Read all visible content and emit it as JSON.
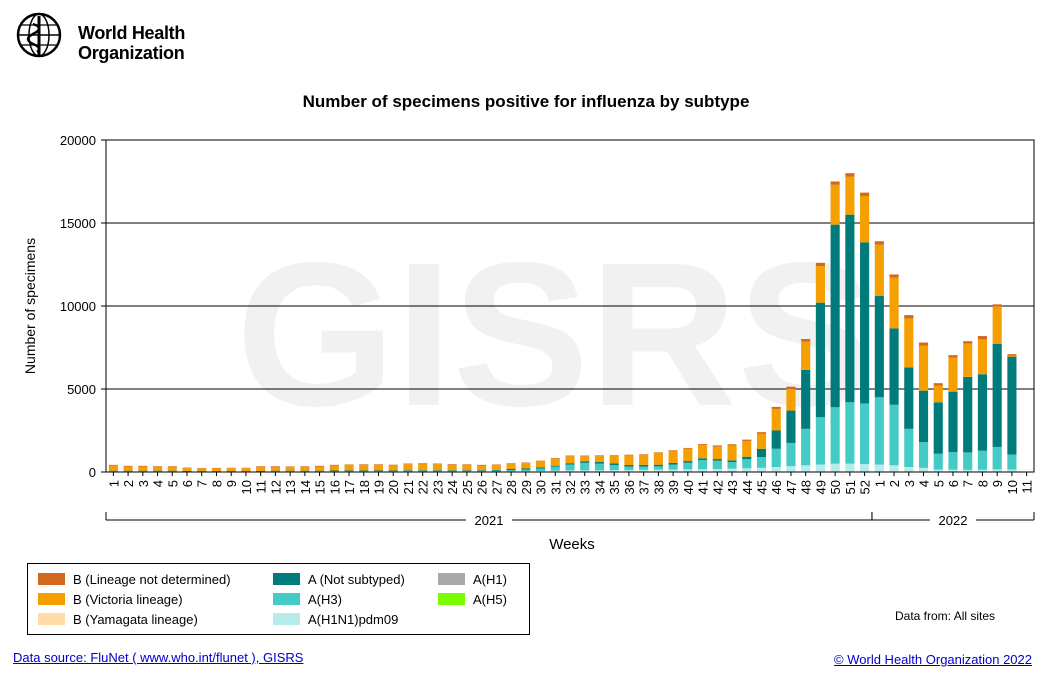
{
  "header": {
    "org_line1": "World Health",
    "org_line2": "Organization"
  },
  "watermark": "GISRS",
  "note": "Data from: All sites",
  "footer": {
    "source": "Data source: FluNet ( www.who.int/flunet ), GISRS",
    "copyright": "© World Health Organization 2022"
  },
  "colors": {
    "b_lineage_nd": "#d2691e",
    "b_victoria": "#f5a000",
    "b_yamagata": "#ffdba6",
    "a_not_subtyped": "#007b7b",
    "a_h3": "#45cbc5",
    "a_h1n1pdm09": "#b6ecec",
    "a_h1": "#a9a9a9",
    "a_h5": "#7cfc00"
  },
  "legend": [
    {
      "name": "B (Lineage not determined)",
      "color_key": "b_lineage_nd"
    },
    {
      "name": "B (Victoria lineage)",
      "color_key": "b_victoria"
    },
    {
      "name": "B (Yamagata lineage)",
      "color_key": "b_yamagata"
    },
    {
      "name": "A (Not subtyped)",
      "color_key": "a_not_subtyped"
    },
    {
      "name": "A(H3)",
      "color_key": "a_h3"
    },
    {
      "name": "A(H1N1)pdm09",
      "color_key": "a_h1n1pdm09"
    },
    {
      "name": "A(H1)",
      "color_key": "a_h1"
    },
    {
      "name": "A(H5)",
      "color_key": "a_h5"
    }
  ],
  "chart_data": {
    "type": "bar",
    "stacked": true,
    "title": "Number of specimens positive for influenza by subtype",
    "xlabel": "Weeks",
    "ylabel": "Number of specimens",
    "ylim": [
      0,
      20000
    ],
    "yticks": [
      0,
      5000,
      10000,
      15000,
      20000
    ],
    "grid": "horizontal",
    "legend_position": "bottom-left",
    "year_groups": [
      {
        "label": "2021",
        "first_week": 1,
        "last_week": 52
      },
      {
        "label": "2022",
        "first_week": 1,
        "last_week": 11
      }
    ],
    "categories": [
      "1",
      "2",
      "3",
      "4",
      "5",
      "6",
      "7",
      "8",
      "9",
      "10",
      "11",
      "12",
      "13",
      "14",
      "15",
      "16",
      "17",
      "18",
      "19",
      "20",
      "21",
      "22",
      "23",
      "24",
      "25",
      "26",
      "27",
      "28",
      "29",
      "30",
      "31",
      "32",
      "33",
      "34",
      "35",
      "36",
      "37",
      "38",
      "39",
      "40",
      "41",
      "42",
      "43",
      "44",
      "45",
      "46",
      "47",
      "48",
      "49",
      "50",
      "51",
      "52",
      "1",
      "2",
      "3",
      "4",
      "5",
      "6",
      "7",
      "8",
      "9",
      "10",
      "11"
    ],
    "series": [
      {
        "name": "A(H1N1)pdm09",
        "color_key": "a_h1n1pdm09",
        "values": [
          20,
          20,
          20,
          20,
          20,
          15,
          15,
          15,
          15,
          15,
          15,
          20,
          20,
          20,
          20,
          20,
          20,
          20,
          20,
          20,
          20,
          20,
          20,
          20,
          20,
          20,
          30,
          40,
          50,
          60,
          80,
          100,
          100,
          100,
          120,
          120,
          130,
          140,
          150,
          160,
          170,
          180,
          200,
          220,
          250,
          300,
          350,
          400,
          450,
          500,
          500,
          480,
          450,
          400,
          300,
          250,
          150,
          140,
          130,
          140,
          160,
          150,
          0
        ]
      },
      {
        "name": "A(H3)",
        "color_key": "a_h3",
        "values": [
          30,
          30,
          30,
          30,
          30,
          20,
          20,
          20,
          20,
          20,
          20,
          30,
          30,
          30,
          30,
          30,
          40,
          40,
          40,
          40,
          50,
          50,
          50,
          50,
          50,
          50,
          60,
          80,
          100,
          150,
          250,
          350,
          450,
          400,
          300,
          200,
          200,
          200,
          300,
          400,
          550,
          500,
          400,
          550,
          650,
          1100,
          1400,
          2200,
          2850,
          3400,
          3700,
          3650,
          4050,
          3650,
          2300,
          1550,
          950,
          1050,
          1050,
          1150,
          1350,
          900,
          0
        ]
      },
      {
        "name": "A (Not subtyped)",
        "color_key": "a_not_subtyped",
        "values": [
          30,
          30,
          30,
          30,
          30,
          30,
          20,
          20,
          20,
          20,
          30,
          30,
          30,
          30,
          30,
          40,
          40,
          40,
          40,
          40,
          40,
          40,
          40,
          40,
          40,
          40,
          40,
          60,
          60,
          70,
          50,
          80,
          100,
          100,
          100,
          100,
          100,
          100,
          100,
          100,
          100,
          100,
          100,
          150,
          500,
          1100,
          1950,
          3550,
          6900,
          11000,
          11300,
          9700,
          6100,
          4600,
          3700,
          3100,
          3100,
          3650,
          4550,
          4600,
          6200,
          5900,
          0
        ]
      },
      {
        "name": "B (Yamagata lineage)",
        "color_key": "b_yamagata",
        "values": [
          0,
          0,
          0,
          0,
          0,
          0,
          0,
          0,
          0,
          0,
          0,
          0,
          0,
          0,
          0,
          0,
          0,
          0,
          0,
          0,
          0,
          0,
          0,
          0,
          0,
          0,
          0,
          0,
          0,
          0,
          0,
          0,
          0,
          0,
          0,
          0,
          0,
          0,
          0,
          0,
          0,
          0,
          0,
          0,
          0,
          0,
          0,
          0,
          0,
          0,
          0,
          0,
          0,
          0,
          0,
          0,
          0,
          0,
          0,
          0,
          0,
          0,
          0
        ]
      },
      {
        "name": "B (Victoria lineage)",
        "color_key": "b_victoria",
        "values": [
          300,
          250,
          250,
          230,
          230,
          170,
          150,
          160,
          170,
          170,
          240,
          230,
          210,
          220,
          250,
          300,
          310,
          320,
          320,
          300,
          360,
          380,
          360,
          320,
          310,
          280,
          280,
          300,
          320,
          360,
          420,
          420,
          300,
          360,
          450,
          580,
          600,
          700,
          720,
          750,
          800,
          750,
          900,
          950,
          900,
          1300,
          1300,
          1700,
          2200,
          2400,
          2300,
          2800,
          3100,
          3050,
          2950,
          2700,
          1000,
          2050,
          2000,
          2100,
          2250,
          50,
          0
        ]
      },
      {
        "name": "B (Lineage not determined)",
        "color_key": "b_lineage_nd",
        "values": [
          50,
          40,
          40,
          40,
          40,
          30,
          30,
          30,
          30,
          30,
          40,
          40,
          40,
          40,
          40,
          40,
          40,
          40,
          40,
          40,
          40,
          40,
          40,
          40,
          40,
          40,
          40,
          40,
          40,
          40,
          40,
          40,
          40,
          40,
          40,
          40,
          40,
          40,
          40,
          40,
          60,
          70,
          70,
          80,
          100,
          120,
          140,
          160,
          200,
          200,
          200,
          200,
          200,
          200,
          200,
          200,
          150,
          150,
          150,
          200,
          140,
          100,
          0
        ]
      }
    ]
  }
}
